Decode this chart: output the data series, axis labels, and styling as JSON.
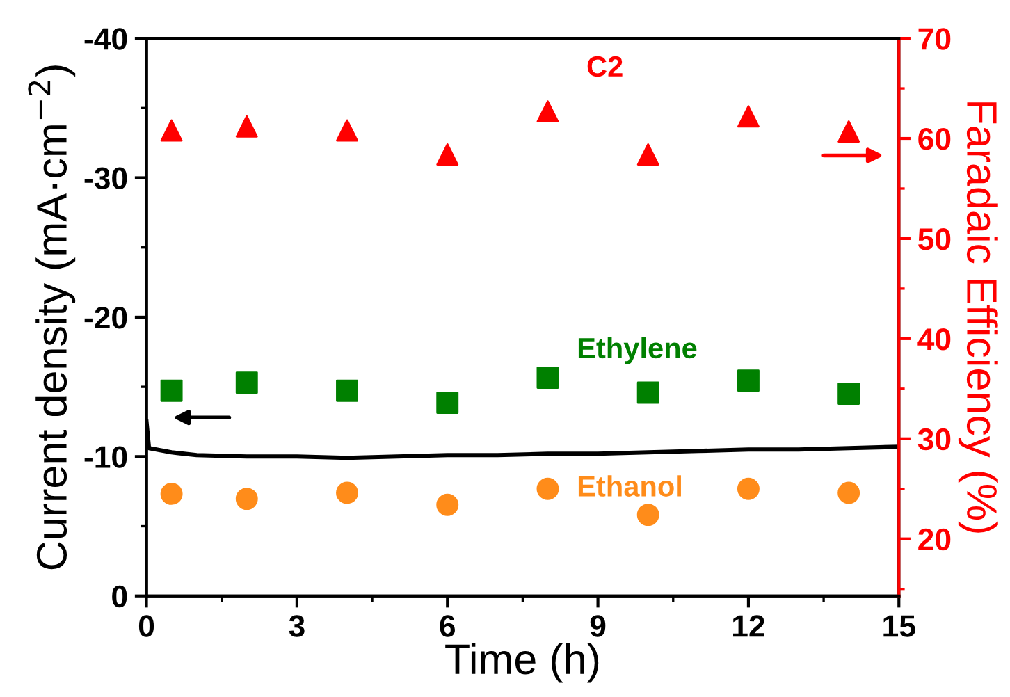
{
  "chart_data": {
    "type": "scatter",
    "xlabel": "Time (h)",
    "ylabel": "Current density (mA·cm$^{−2}$)",
    "y2label": "Faradaic Efficiency (%)",
    "xlim": [
      0,
      15
    ],
    "xticks": [
      0,
      3,
      6,
      9,
      12,
      15
    ],
    "ylim": [
      0,
      -40
    ],
    "yticks": [
      0,
      -10,
      -20,
      -30,
      -40
    ],
    "y2lim": [
      14.3,
      70
    ],
    "y2ticks": [
      20,
      30,
      40,
      50,
      60,
      70
    ],
    "grid": false,
    "legend": false,
    "series": [
      {
        "type": "line",
        "color": "#000000",
        "x": [
          0,
          0.05,
          0.5,
          1,
          2,
          3,
          4,
          5,
          6,
          7,
          8,
          9,
          10,
          11,
          12,
          13,
          14,
          15
        ],
        "values": [
          -12.5,
          -10.6,
          -10.3,
          -10.1,
          -10.0,
          -10.0,
          -9.9,
          -10.0,
          -10.1,
          -10.1,
          -10.2,
          -10.2,
          -10.3,
          -10.4,
          -10.5,
          -10.5,
          -10.6,
          -10.7
        ]
      },
      {
        "name": "C2",
        "color": "#ff0000",
        "marker": "triangle",
        "axis": "y2",
        "x": [
          0.5,
          2,
          4,
          6,
          8,
          10,
          12,
          14
        ],
        "values": [
          60.8,
          61.2,
          60.8,
          58.4,
          62.7,
          58.4,
          62.2,
          60.7
        ]
      },
      {
        "name": "Ethylene",
        "color": "#008000",
        "marker": "square",
        "axis": "y2",
        "x": [
          0.5,
          2,
          4,
          6,
          8,
          10,
          12,
          14
        ],
        "values": [
          34.8,
          35.6,
          34.8,
          33.6,
          36.1,
          34.6,
          35.8,
          34.5
        ]
      },
      {
        "name": "Ethanol",
        "color": "#ff8c1a",
        "marker": "circle",
        "axis": "y2",
        "x": [
          0.5,
          2,
          4,
          6,
          8,
          10,
          12,
          14
        ],
        "values": [
          24.5,
          24.0,
          24.6,
          23.4,
          25.0,
          22.4,
          25.0,
          24.6
        ]
      }
    ]
  }
}
